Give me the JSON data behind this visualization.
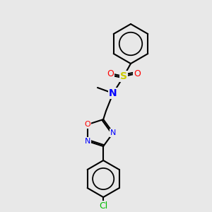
{
  "background_color": "#e8e8e8",
  "bond_color": "#000000",
  "atom_colors": {
    "N": "#0000ff",
    "O": "#ff0000",
    "S": "#cccc00",
    "Cl": "#00bb00",
    "C": "#000000"
  },
  "figsize": [
    3.0,
    3.0
  ],
  "dpi": 100,
  "scale": 1.0
}
